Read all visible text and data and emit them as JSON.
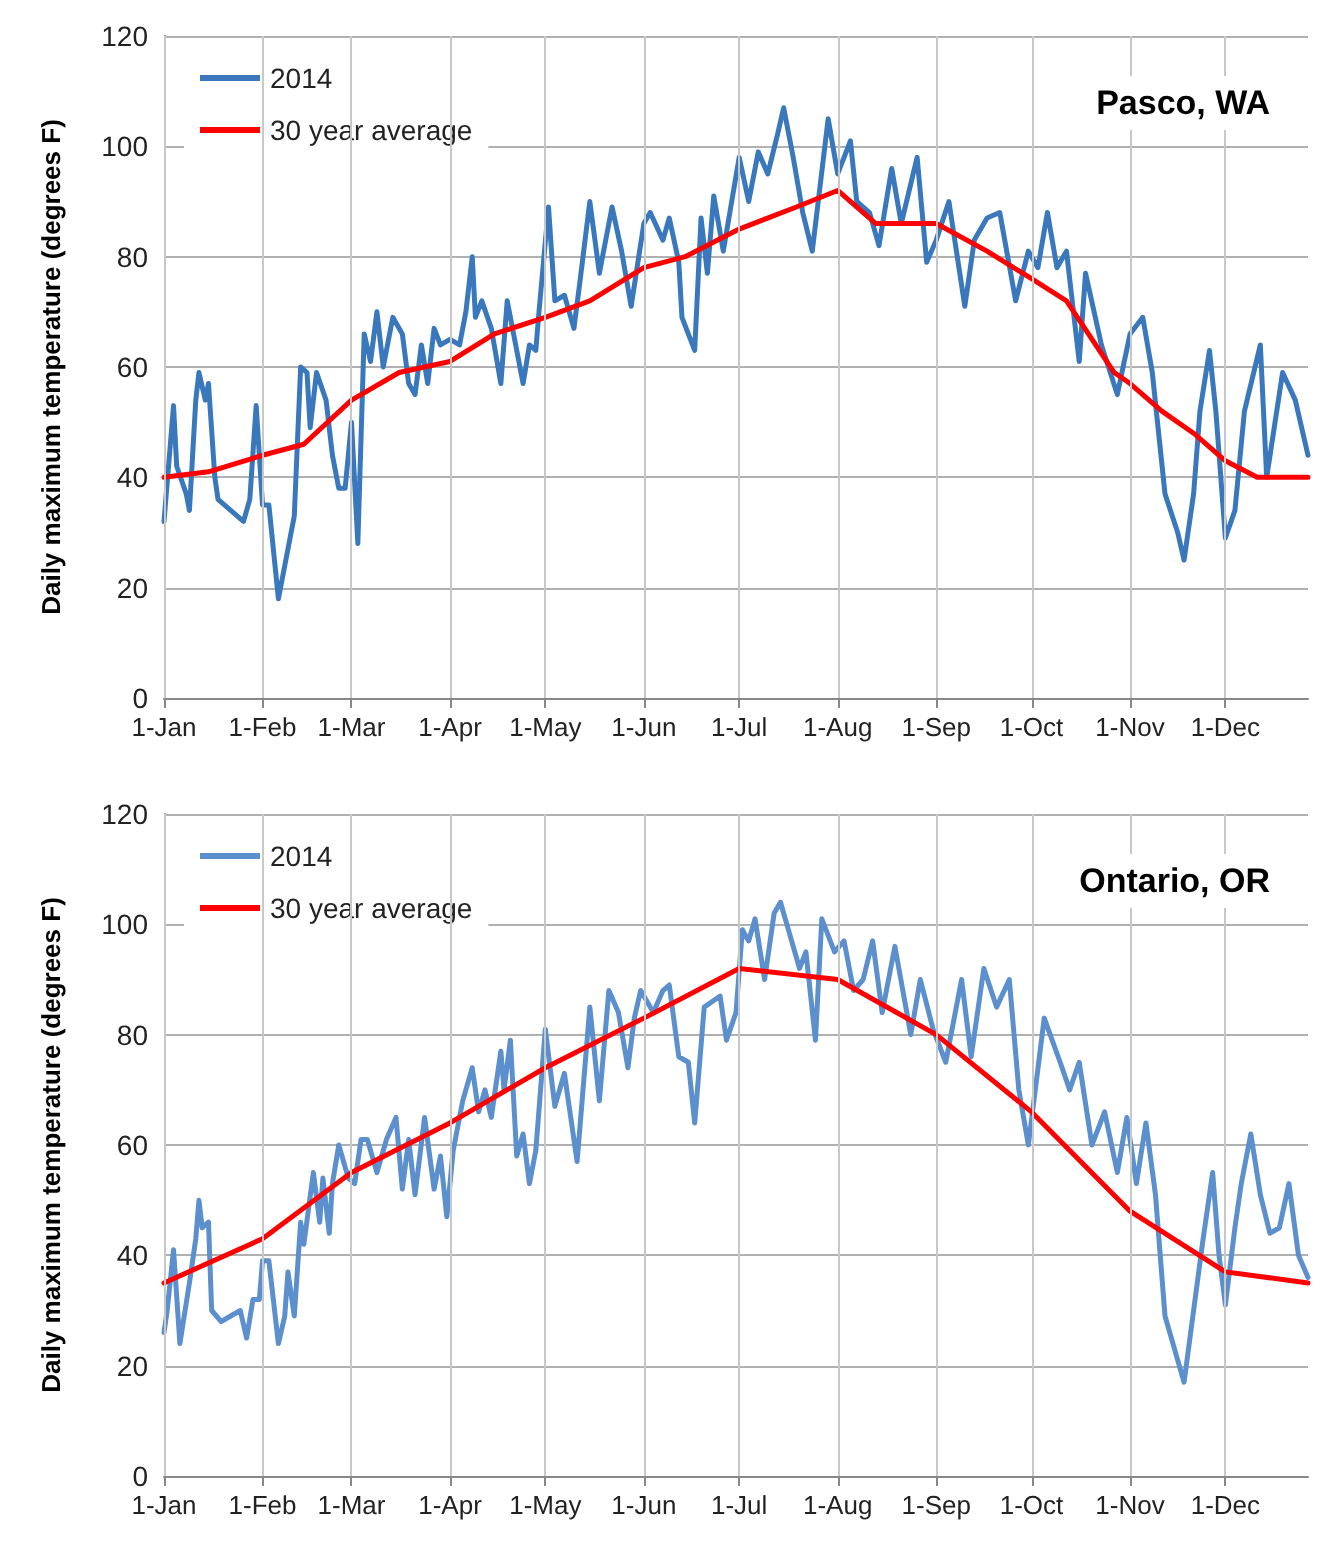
{
  "chart_data": [
    {
      "type": "line",
      "title": "Pasco, WA",
      "ylabel": "Daily maximum temperature (degrees F)",
      "xlim": [
        "--01-01",
        "--12-27"
      ],
      "ylim": [
        0,
        120
      ],
      "yticks": [
        0,
        20,
        40,
        60,
        80,
        100,
        120
      ],
      "xticks": [
        {
          "value": "--01-01",
          "label": "1-Jan"
        },
        {
          "value": "--02-01",
          "label": "1-Feb"
        },
        {
          "value": "--03-01",
          "label": "1-Mar"
        },
        {
          "value": "--04-01",
          "label": "1-Apr"
        },
        {
          "value": "--05-01",
          "label": "1-May"
        },
        {
          "value": "--06-01",
          "label": "1-Jun"
        },
        {
          "value": "--07-01",
          "label": "1-Jul"
        },
        {
          "value": "--08-01",
          "label": "1-Aug"
        },
        {
          "value": "--09-01",
          "label": "1-Sep"
        },
        {
          "value": "--10-01",
          "label": "1-Oct"
        },
        {
          "value": "--11-01",
          "label": "1-Nov"
        },
        {
          "value": "--12-01",
          "label": "1-Dec"
        }
      ],
      "grid": true,
      "legend": "top left",
      "marker": "none",
      "line_style": "solid",
      "series": [
        {
          "name": "2014",
          "color": "#3a78bd",
          "x": [
            "--01-01",
            "--01-04",
            "--01-05",
            "--01-08",
            "--01-09",
            "--01-11",
            "--01-12",
            "--01-14",
            "--01-15",
            "--01-17",
            "--01-18",
            "--01-22",
            "--01-26",
            "--01-28",
            "--01-30",
            "--02-01",
            "--02-03",
            "--02-06",
            "--02-11",
            "--02-13",
            "--02-15",
            "--02-16",
            "--02-18",
            "--02-21",
            "--02-23",
            "--02-25",
            "--02-27",
            "--03-01",
            "--03-03",
            "--03-05",
            "--03-07",
            "--03-09",
            "--03-11",
            "--03-14",
            "--03-17",
            "--03-19",
            "--03-21",
            "--03-23",
            "--03-25",
            "--03-27",
            "--03-29",
            "--04-01",
            "--04-04",
            "--04-06",
            "--04-08",
            "--04-09",
            "--04-11",
            "--04-14",
            "--04-17",
            "--04-19",
            "--04-21",
            "--04-24",
            "--04-26",
            "--04-28",
            "--04-29",
            "--05-02",
            "--05-04",
            "--05-07",
            "--05-10",
            "--05-12",
            "--05-15",
            "--05-18",
            "--05-22",
            "--05-25",
            "--05-28",
            "--06-01",
            "--06-03",
            "--06-07",
            "--06-09",
            "--06-12",
            "--06-13",
            "--06-17",
            "--06-19",
            "--06-21",
            "--06-23",
            "--06-26",
            "--07-01",
            "--07-04",
            "--07-07",
            "--07-10",
            "--07-13",
            "--07-15",
            "--07-18",
            "--07-21",
            "--07-24",
            "--07-29",
            "--08-01",
            "--08-05",
            "--08-07",
            "--08-11",
            "--08-14",
            "--08-18",
            "--08-21",
            "--08-26",
            "--08-29",
            "--09-01",
            "--09-05",
            "--09-10",
            "--09-13",
            "--09-17",
            "--09-21",
            "--09-26",
            "--09-30",
            "--10-03",
            "--10-06",
            "--10-09",
            "--10-12",
            "--10-16",
            "--10-18",
            "--10-23",
            "--10-28",
            "--11-01",
            "--11-05",
            "--11-08",
            "--11-12",
            "--11-16",
            "--11-18",
            "--11-21",
            "--11-23",
            "--11-26",
            "--11-28",
            "--12-01",
            "--12-04",
            "--12-07",
            "--12-12",
            "--12-14",
            "--12-19",
            "--12-23",
            "--12-27"
          ],
          "values": [
            32,
            53,
            42,
            37,
            34,
            54,
            59,
            54,
            57,
            40,
            36,
            34,
            32,
            36,
            53,
            35,
            35,
            18,
            33,
            60,
            59,
            49,
            59,
            54,
            44,
            38,
            38,
            50,
            28,
            66,
            61,
            70,
            60,
            69,
            66,
            57,
            55,
            64,
            57,
            67,
            64,
            65,
            64,
            70,
            80,
            69,
            72,
            67,
            57,
            72,
            66,
            57,
            64,
            63,
            70,
            89,
            72,
            73,
            67,
            76,
            90,
            77,
            89,
            81,
            71,
            86,
            88,
            83,
            87,
            79,
            69,
            63,
            87,
            77,
            91,
            81,
            98,
            90,
            99,
            95,
            102,
            107,
            98,
            88,
            81,
            105,
            95,
            101,
            90,
            88,
            82,
            96,
            86,
            98,
            79,
            83,
            90,
            71,
            83,
            87,
            88,
            72,
            81,
            78,
            88,
            78,
            81,
            61,
            77,
            64,
            55,
            66,
            69,
            59,
            37,
            30,
            25,
            37,
            52,
            63,
            52,
            29,
            34,
            52,
            64,
            40,
            59,
            54,
            44
          ]
        },
        {
          "name": "30 year average",
          "color": "#ff0000",
          "x": [
            "--01-01",
            "--01-15",
            "--02-01",
            "--02-14",
            "--03-01",
            "--03-16",
            "--04-01",
            "--04-15",
            "--05-01",
            "--05-15",
            "--06-01",
            "--06-14",
            "--07-01",
            "--07-19",
            "--08-01",
            "--08-13",
            "--09-01",
            "--09-17",
            "--10-01",
            "--10-12",
            "--10-27",
            "--11-01",
            "--11-11",
            "--11-21",
            "--12-01",
            "--12-11",
            "--12-27"
          ],
          "values": [
            40,
            41,
            44,
            46,
            54,
            59,
            61,
            66,
            69,
            72,
            78,
            80,
            85,
            89,
            92,
            86,
            86,
            81,
            76,
            72,
            59,
            57,
            52,
            48,
            43,
            40,
            40
          ]
        }
      ]
    },
    {
      "type": "line",
      "title": "Ontario, OR",
      "ylabel": "Daily maximum temperature (degrees F)",
      "xlim": [
        "--01-01",
        "--12-27"
      ],
      "ylim": [
        0,
        120
      ],
      "yticks": [
        0,
        20,
        40,
        60,
        80,
        100,
        120
      ],
      "xticks": [
        {
          "value": "--01-01",
          "label": "1-Jan"
        },
        {
          "value": "--02-01",
          "label": "1-Feb"
        },
        {
          "value": "--03-01",
          "label": "1-Mar"
        },
        {
          "value": "--04-01",
          "label": "1-Apr"
        },
        {
          "value": "--05-01",
          "label": "1-May"
        },
        {
          "value": "--06-01",
          "label": "1-Jun"
        },
        {
          "value": "--07-01",
          "label": "1-Jul"
        },
        {
          "value": "--08-01",
          "label": "1-Aug"
        },
        {
          "value": "--09-01",
          "label": "1-Sep"
        },
        {
          "value": "--10-01",
          "label": "1-Oct"
        },
        {
          "value": "--11-01",
          "label": "1-Nov"
        },
        {
          "value": "--12-01",
          "label": "1-Dec"
        }
      ],
      "grid": true,
      "legend": "top left",
      "marker": "none",
      "line_style": "solid",
      "series": [
        {
          "name": "2014",
          "color": "#5b8fcd",
          "x": [
            "--01-01",
            "--01-02",
            "--01-04",
            "--01-06",
            "--01-09",
            "--01-11",
            "--01-12",
            "--01-13",
            "--01-15",
            "--01-16",
            "--01-19",
            "--01-22",
            "--01-25",
            "--01-27",
            "--01-29",
            "--01-31",
            "--02-01",
            "--02-03",
            "--02-06",
            "--02-08",
            "--02-09",
            "--02-11",
            "--02-13",
            "--02-14",
            "--02-17",
            "--02-19",
            "--02-20",
            "--02-22",
            "--02-23",
            "--02-25",
            "--02-28",
            "--03-02",
            "--03-04",
            "--03-06",
            "--03-09",
            "--03-12",
            "--03-15",
            "--03-17",
            "--03-19",
            "--03-21",
            "--03-24",
            "--03-27",
            "--03-29",
            "--03-31",
            "--04-02",
            "--04-05",
            "--04-08",
            "--04-10",
            "--04-12",
            "--04-14",
            "--04-17",
            "--04-18",
            "--04-20",
            "--04-22",
            "--04-24",
            "--04-26",
            "--04-28",
            "--05-01",
            "--05-04",
            "--05-07",
            "--05-11",
            "--05-15",
            "--05-18",
            "--05-21",
            "--05-24",
            "--05-27",
            "--05-29",
            "--05-31",
            "--06-04",
            "--06-07",
            "--06-09",
            "--06-12",
            "--06-15",
            "--06-17",
            "--06-20",
            "--06-25",
            "--06-27",
            "--06-30",
            "--07-02",
            "--07-04",
            "--07-06",
            "--07-09",
            "--07-12",
            "--07-14",
            "--07-17",
            "--07-20",
            "--07-22",
            "--07-25",
            "--07-27",
            "--07-31",
            "--08-03",
            "--08-06",
            "--08-09",
            "--08-12",
            "--08-15",
            "--08-19",
            "--08-24",
            "--08-27",
            "--08-31",
            "--09-04",
            "--09-09",
            "--09-12",
            "--09-16",
            "--09-20",
            "--09-24",
            "--09-27",
            "--09-30",
            "--10-05",
            "--10-10",
            "--10-13",
            "--10-16",
            "--10-20",
            "--10-24",
            "--10-28",
            "--10-31",
            "--11-03",
            "--11-06",
            "--11-09",
            "--11-12",
            "--11-15",
            "--11-18",
            "--11-21",
            "--11-24",
            "--11-27",
            "--11-29",
            "--12-01",
            "--12-04",
            "--12-06",
            "--12-09",
            "--12-12",
            "--12-15",
            "--12-18",
            "--12-21",
            "--12-24",
            "--12-27"
          ],
          "values": [
            26,
            30,
            41,
            24,
            35,
            43,
            50,
            45,
            46,
            30,
            28,
            29,
            30,
            25,
            32,
            32,
            39,
            39,
            24,
            29,
            37,
            29,
            46,
            42,
            55,
            46,
            54,
            44,
            53,
            60,
            54,
            53,
            61,
            61,
            55,
            61,
            65,
            52,
            61,
            51,
            65,
            52,
            58,
            47,
            59,
            68,
            74,
            66,
            70,
            65,
            77,
            70,
            79,
            58,
            62,
            53,
            59,
            81,
            67,
            73,
            57,
            85,
            68,
            88,
            84,
            74,
            83,
            88,
            84,
            88,
            89,
            76,
            75,
            64,
            85,
            87,
            79,
            84,
            99,
            97,
            101,
            90,
            102,
            104,
            98,
            92,
            95,
            79,
            101,
            95,
            97,
            88,
            90,
            97,
            84,
            96,
            80,
            90,
            81,
            75,
            90,
            76,
            92,
            85,
            90,
            70,
            60,
            83,
            75,
            70,
            75,
            60,
            66,
            55,
            65,
            53,
            64,
            51,
            29,
            23,
            17,
            30,
            43,
            55,
            40,
            31,
            45,
            53,
            62,
            51,
            44,
            45,
            53,
            40,
            36
          ]
        },
        {
          "name": "30 year average",
          "color": "#ff0000",
          "x": [
            "--01-01",
            "--02-01",
            "--03-01",
            "--04-01",
            "--05-01",
            "--06-01",
            "--07-01",
            "--08-01",
            "--09-01",
            "--10-01",
            "--11-01",
            "--12-01",
            "--12-27"
          ],
          "values": [
            35,
            43,
            55,
            64,
            74,
            83,
            92,
            90,
            80,
            66,
            48,
            37,
            35
          ]
        }
      ]
    }
  ]
}
